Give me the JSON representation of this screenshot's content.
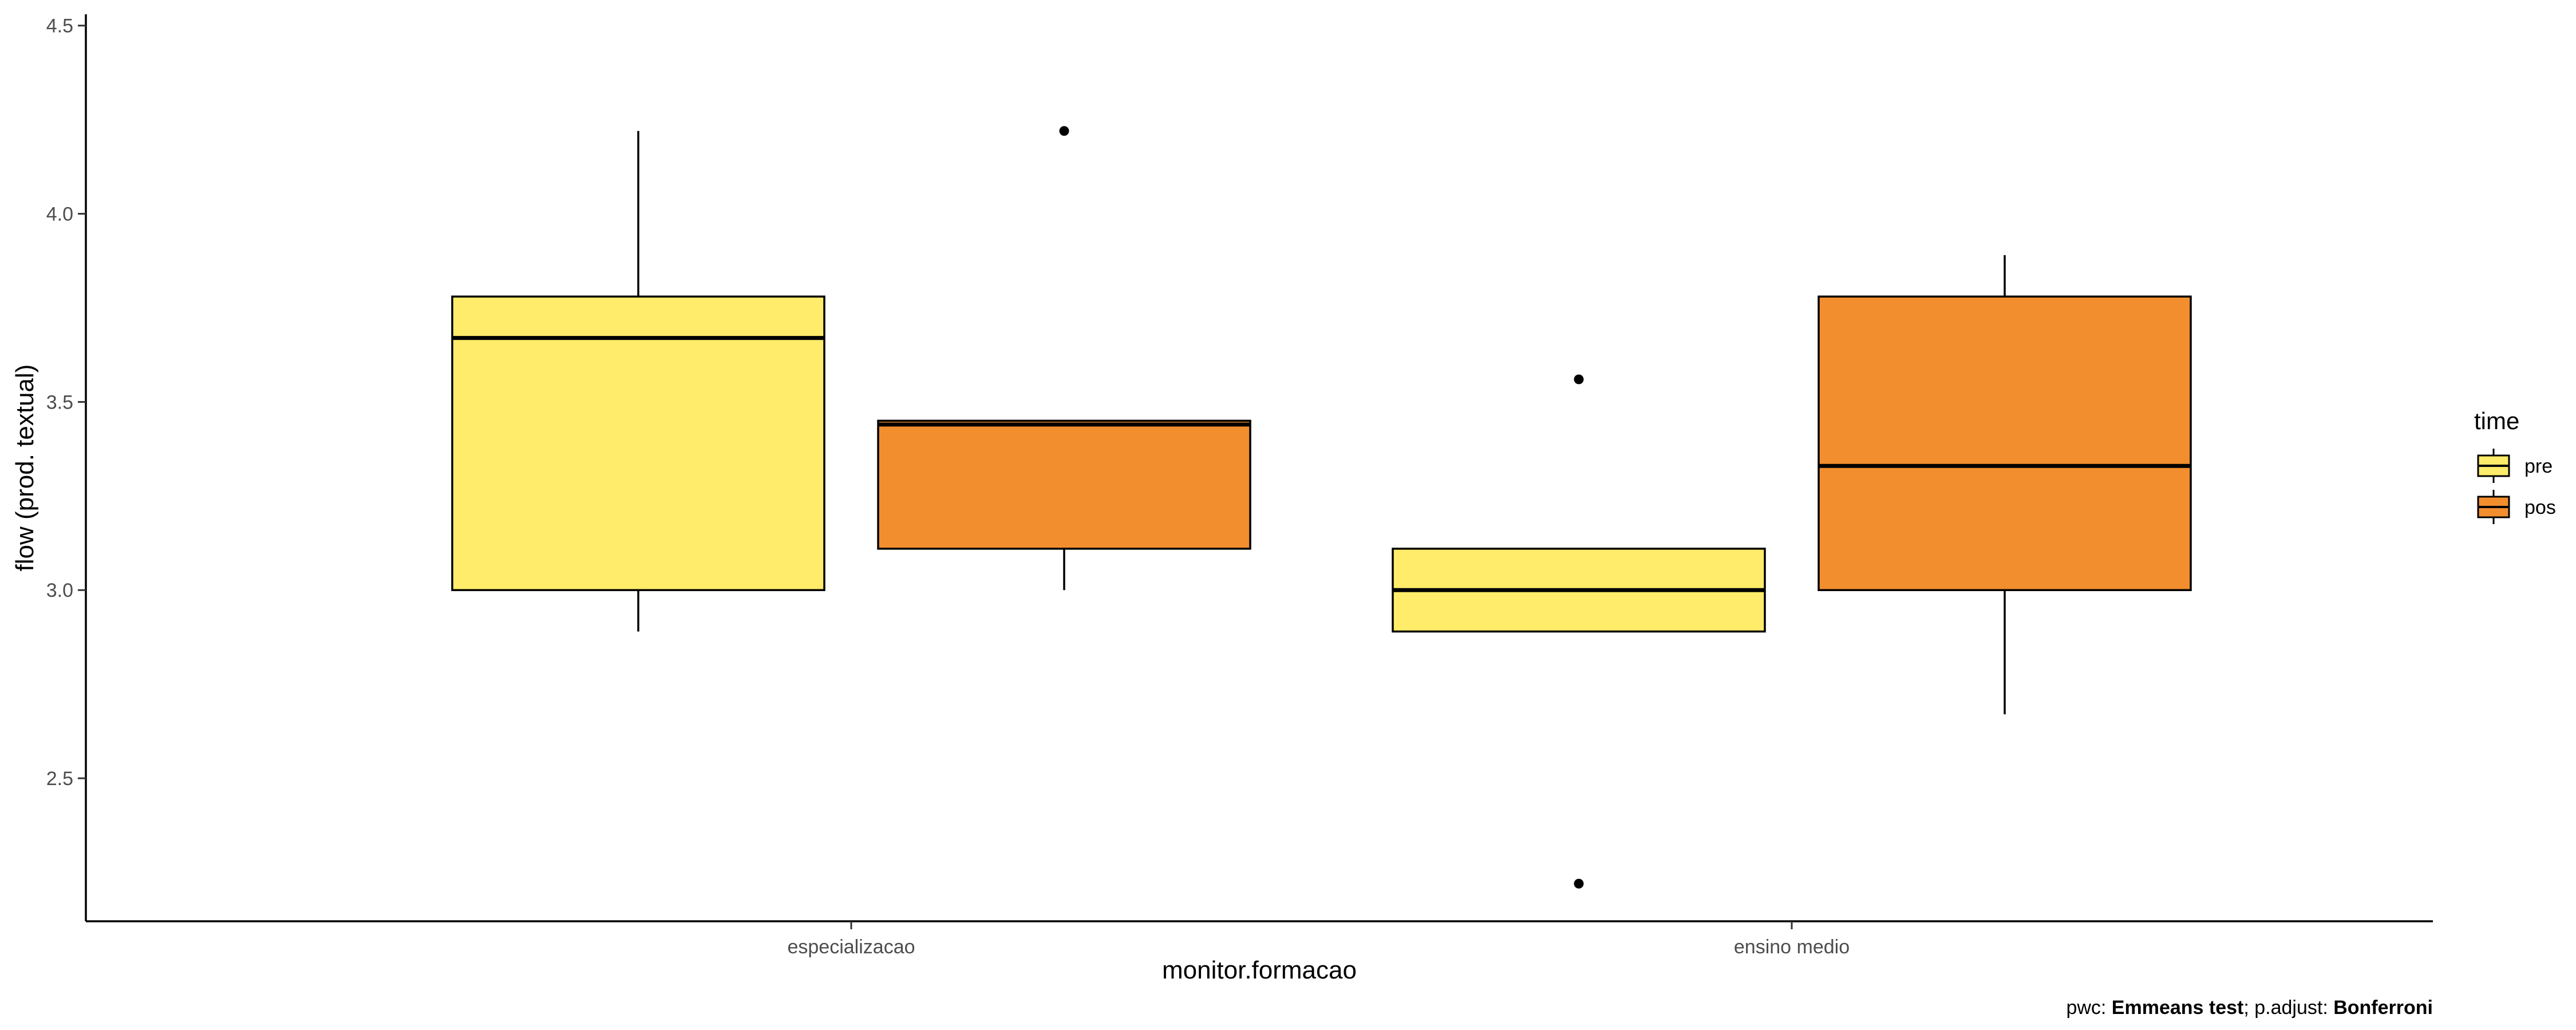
{
  "chart_data": {
    "type": "box",
    "xlabel": "monitor.formacao",
    "ylabel": "flow (prod. textual)",
    "categories": [
      "especializacao",
      "ensino medio"
    ],
    "ylim": [
      2.12,
      4.53
    ],
    "yticks": [
      "2.5",
      "3.0",
      "3.5",
      "4.0",
      "4.5"
    ],
    "legend": {
      "title": "time",
      "position": "right",
      "entries": [
        {
          "label": "pre",
          "color": "#FFEC6A"
        },
        {
          "label": "pos",
          "color": "#F28E2E"
        }
      ]
    },
    "series": [
      {
        "name": "pre",
        "color": "#FFEC6A",
        "boxes": [
          {
            "category": "especializacao",
            "whisker_low": 2.89,
            "q1": 3.0,
            "median": 3.67,
            "q3": 3.78,
            "whisker_high": 4.22,
            "outliers": []
          },
          {
            "category": "ensino medio",
            "whisker_low": 2.89,
            "q1": 2.89,
            "median": 3.0,
            "q3": 3.11,
            "whisker_high": 3.11,
            "outliers": [
              3.56,
              2.22
            ]
          }
        ]
      },
      {
        "name": "pos",
        "color": "#F28E2E",
        "boxes": [
          {
            "category": "especializacao",
            "whisker_low": 3.0,
            "q1": 3.11,
            "median": 3.44,
            "q3": 3.45,
            "whisker_high": 3.45,
            "outliers": [
              4.22
            ]
          },
          {
            "category": "ensino medio",
            "whisker_low": 2.67,
            "q1": 3.0,
            "median": 3.33,
            "q3": 3.78,
            "whisker_high": 3.89,
            "outliers": []
          }
        ]
      }
    ],
    "caption": {
      "parts": [
        {
          "text": "pwc: ",
          "bold": false
        },
        {
          "text": "Emmeans test",
          "bold": true
        },
        {
          "text": "; p.adjust: ",
          "bold": false
        },
        {
          "text": "Bonferroni",
          "bold": true
        }
      ]
    }
  }
}
